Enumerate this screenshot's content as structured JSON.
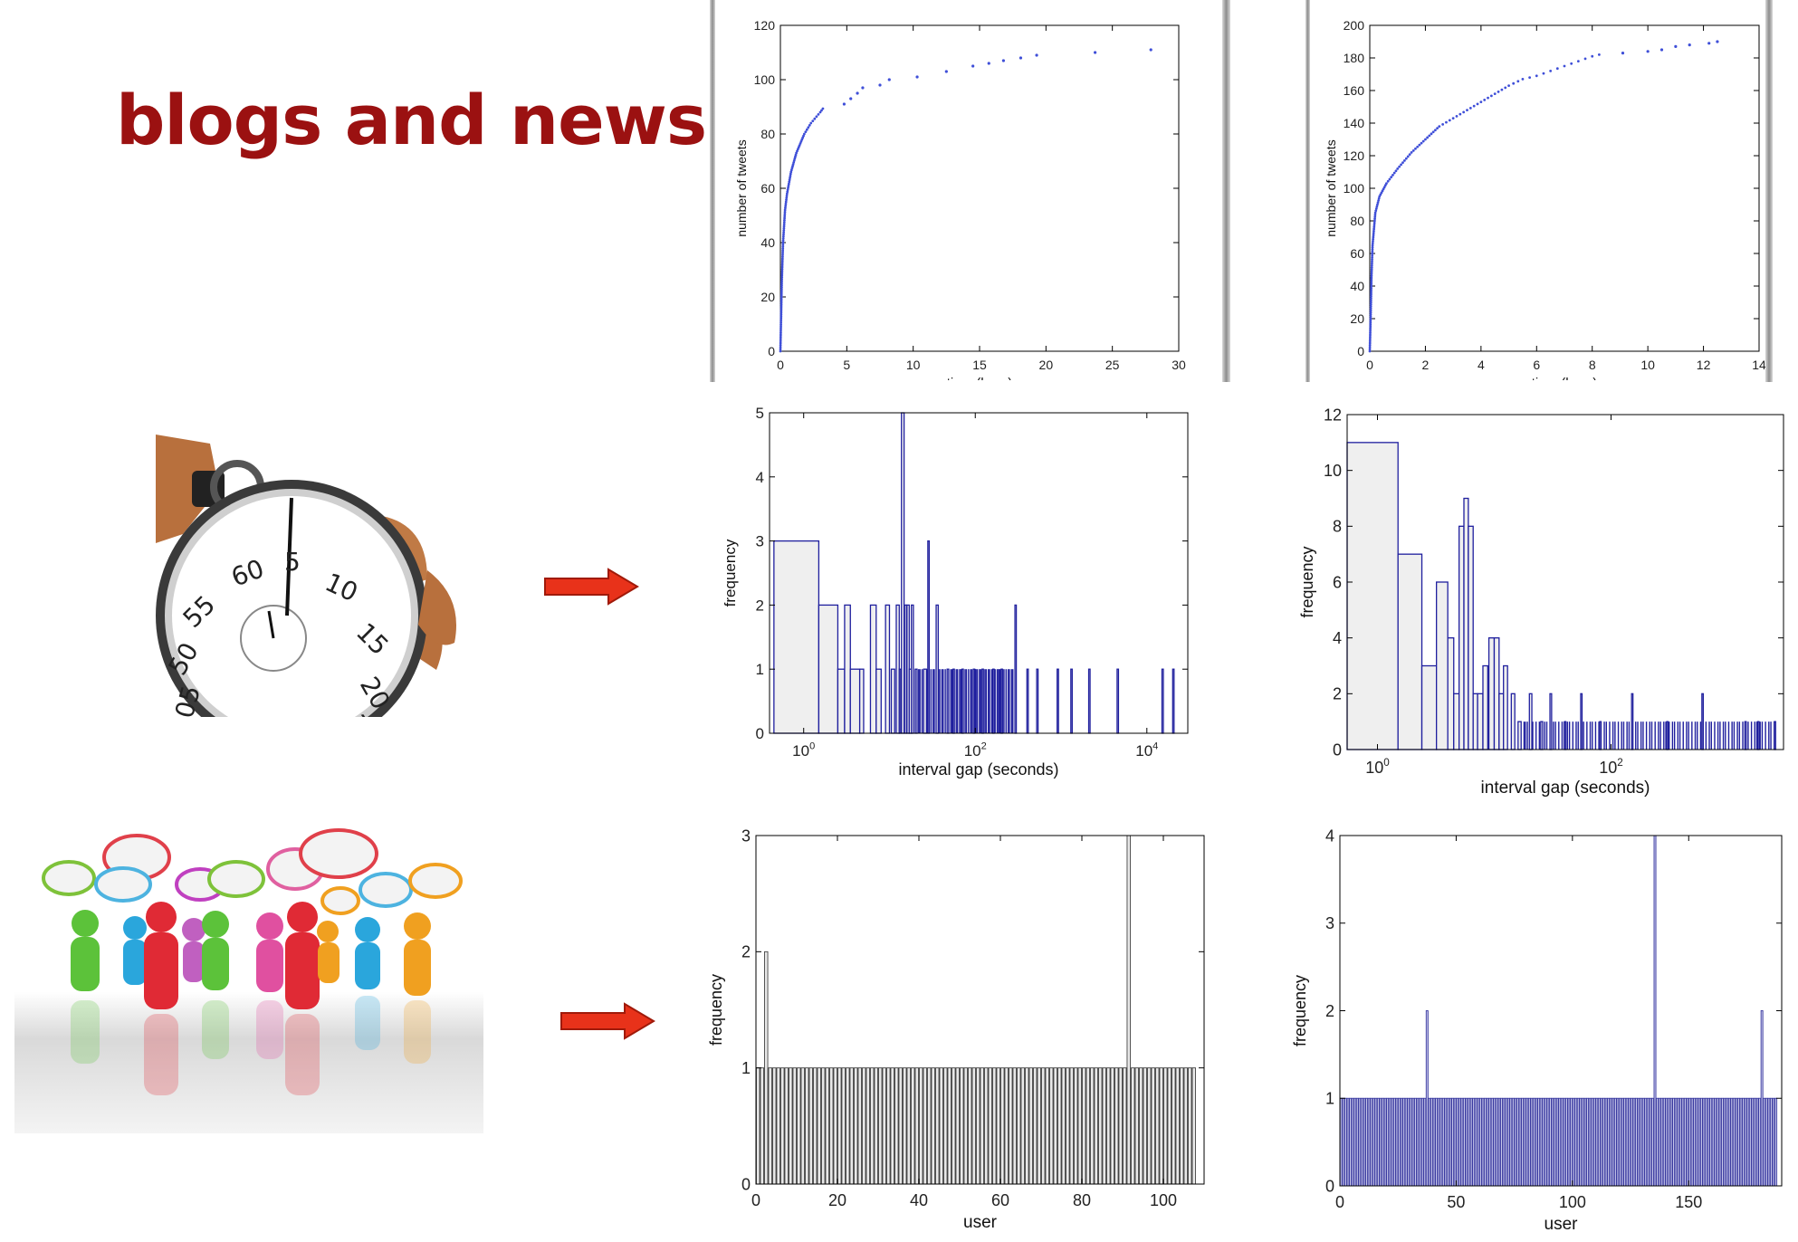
{
  "slide": {
    "title": "blogs and news"
  },
  "images": {
    "stopwatch": {
      "description_icon": "stopwatch-icon"
    },
    "crowd": {
      "description_icon": "people-speech-bubbles-icon"
    }
  },
  "colors": {
    "title": "#9b1111",
    "arrow": "#e8321a",
    "blue": "#1f1f9e",
    "gray_fill": "#efefef"
  },
  "chart_data": [
    {
      "id": "cum1",
      "type": "scatter",
      "xlabel": "time (hour)",
      "ylabel": "number of tweets",
      "xlim": [
        0,
        30
      ],
      "ylim": [
        0,
        120
      ],
      "xticks": [
        0,
        5,
        10,
        15,
        20,
        25,
        30
      ],
      "yticks": [
        0,
        20,
        40,
        60,
        80,
        100,
        120
      ],
      "curve": [
        [
          0,
          0
        ],
        [
          0.05,
          12
        ],
        [
          0.1,
          25
        ],
        [
          0.2,
          40
        ],
        [
          0.35,
          52
        ],
        [
          0.5,
          58
        ],
        [
          0.8,
          66
        ],
        [
          1.2,
          73
        ],
        [
          1.8,
          80
        ],
        [
          2.3,
          84
        ],
        [
          3,
          88
        ],
        [
          3.3,
          90
        ]
      ],
      "extra_points": [
        [
          4.8,
          91
        ],
        [
          5.3,
          93
        ],
        [
          5.8,
          95
        ],
        [
          6.2,
          97
        ],
        [
          7.5,
          98
        ],
        [
          8.2,
          100
        ],
        [
          10.3,
          101
        ],
        [
          12.5,
          103
        ],
        [
          14.5,
          105
        ],
        [
          15.7,
          106
        ],
        [
          16.8,
          107
        ],
        [
          18.1,
          108
        ],
        [
          19.3,
          109
        ],
        [
          23.7,
          110
        ],
        [
          27.9,
          111
        ]
      ]
    },
    {
      "id": "cum2",
      "type": "scatter",
      "xlabel": "time (hour)",
      "ylabel": "number of tweets",
      "xlim": [
        0,
        14
      ],
      "ylim": [
        0,
        200
      ],
      "xticks": [
        0,
        2,
        4,
        6,
        8,
        10,
        12,
        14
      ],
      "yticks": [
        0,
        20,
        40,
        60,
        80,
        100,
        120,
        140,
        160,
        180,
        200
      ],
      "curve": [
        [
          0,
          0
        ],
        [
          0.03,
          20
        ],
        [
          0.06,
          45
        ],
        [
          0.1,
          65
        ],
        [
          0.2,
          85
        ],
        [
          0.35,
          95
        ],
        [
          0.6,
          103
        ],
        [
          1,
          112
        ],
        [
          1.5,
          122
        ],
        [
          2,
          130
        ],
        [
          2.5,
          138
        ],
        [
          3,
          143
        ],
        [
          3.5,
          148
        ],
        [
          4,
          153
        ],
        [
          4.5,
          158
        ],
        [
          5,
          163
        ],
        [
          5.5,
          167
        ],
        [
          6,
          169
        ],
        [
          6.5,
          172
        ],
        [
          7,
          175
        ],
        [
          7.5,
          178
        ],
        [
          8,
          181
        ],
        [
          8.5,
          183
        ]
      ],
      "extra_points": [
        [
          9.1,
          183
        ],
        [
          10,
          184
        ],
        [
          10.5,
          185
        ],
        [
          11,
          187
        ],
        [
          11.5,
          188
        ],
        [
          12.2,
          189
        ],
        [
          12.5,
          190
        ]
      ]
    },
    {
      "id": "hist1",
      "type": "bar",
      "xlabel": "interval gap (seconds)",
      "ylabel": "frequency",
      "xscale": "log",
      "xlim": [
        0.4,
        30000
      ],
      "ylim": [
        0,
        5
      ],
      "xticks": [
        {
          "v": 1,
          "base": "10",
          "exp": "0"
        },
        {
          "v": 100,
          "base": "10",
          "exp": "2"
        },
        {
          "v": 10000,
          "base": "10",
          "exp": "4"
        }
      ],
      "yticks": [
        0,
        1,
        2,
        3,
        4,
        5
      ],
      "bars": [
        [
          0.45,
          1.5,
          3
        ],
        [
          1.5,
          2.5,
          2
        ],
        [
          2.5,
          3,
          1
        ],
        [
          3,
          3.5,
          2
        ],
        [
          3.5,
          4.5,
          1
        ],
        [
          4.5,
          5,
          1
        ],
        [
          6,
          7,
          2
        ],
        [
          7,
          8,
          1
        ],
        [
          9,
          10,
          2
        ],
        [
          10.5,
          11.5,
          1
        ],
        [
          12,
          13,
          2
        ],
        [
          13,
          13.5,
          1
        ],
        [
          13.8,
          14.8,
          5
        ],
        [
          15,
          15.8,
          2
        ],
        [
          16,
          17,
          2
        ],
        [
          17,
          18,
          1
        ],
        [
          18,
          19,
          2
        ],
        [
          20,
          21,
          1
        ],
        [
          25,
          27,
          1
        ],
        [
          28,
          29,
          3
        ],
        [
          35,
          37,
          2
        ],
        [
          47,
          49,
          1
        ],
        [
          55,
          57,
          1
        ],
        [
          70,
          72,
          1
        ],
        [
          95,
          97,
          1
        ],
        [
          120,
          123,
          1
        ],
        [
          160,
          163,
          1
        ],
        [
          200,
          203,
          1
        ],
        [
          290,
          294,
          2
        ],
        [
          400,
          405,
          1
        ],
        [
          520,
          530,
          1
        ],
        [
          900,
          910,
          1
        ],
        [
          1300,
          1320,
          1
        ],
        [
          2100,
          2130,
          1
        ],
        [
          4500,
          4560,
          1
        ],
        [
          15000,
          15200,
          1
        ],
        [
          20000,
          20300,
          1
        ]
      ],
      "dense_spikes": {
        "from": 20,
        "to": 280,
        "count": 60,
        "value": 1
      }
    },
    {
      "id": "hist2",
      "type": "bar",
      "xlabel": "interval gap (seconds)",
      "ylabel": "frequency",
      "xscale": "log",
      "xlim": [
        0.55,
        3000
      ],
      "ylim": [
        0,
        12
      ],
      "xticks": [
        {
          "v": 1,
          "base": "10",
          "exp": "0"
        },
        {
          "v": 100,
          "base": "10",
          "exp": "2"
        }
      ],
      "yticks": [
        0,
        2,
        4,
        6,
        8,
        10,
        12
      ],
      "bars": [
        [
          0.55,
          1.5,
          11
        ],
        [
          1.5,
          2.4,
          7
        ],
        [
          2.4,
          3.2,
          3
        ],
        [
          3.2,
          4,
          6
        ],
        [
          4,
          4.5,
          4
        ],
        [
          4.5,
          5,
          2
        ],
        [
          5,
          5.5,
          8
        ],
        [
          5.5,
          6,
          9
        ],
        [
          6,
          6.6,
          8
        ],
        [
          6.6,
          7.2,
          2
        ],
        [
          7.2,
          8,
          2
        ],
        [
          8,
          8.8,
          3
        ],
        [
          9,
          10,
          4
        ],
        [
          10,
          11,
          4
        ],
        [
          11,
          12,
          2
        ],
        [
          12,
          13,
          3
        ],
        [
          14,
          15,
          2
        ],
        [
          16,
          17,
          1
        ],
        [
          20,
          21,
          2
        ],
        [
          25,
          26,
          1
        ],
        [
          30,
          31,
          2
        ],
        [
          40,
          41,
          1
        ],
        [
          55,
          56,
          2
        ],
        [
          80,
          81,
          1
        ],
        [
          150,
          152,
          2
        ],
        [
          300,
          303,
          1
        ],
        [
          600,
          606,
          2
        ],
        [
          1400,
          1410,
          1
        ],
        [
          1800,
          1820,
          1
        ],
        [
          2500,
          2520,
          1
        ]
      ],
      "dense_spikes": {
        "from": 18,
        "to": 2600,
        "count": 90,
        "value": 1
      }
    },
    {
      "id": "user1",
      "type": "bar",
      "xlabel": "user",
      "ylabel": "frequency",
      "xlim": [
        0,
        110
      ],
      "ylim": [
        0,
        3
      ],
      "xticks": [
        0,
        20,
        40,
        60,
        80,
        100
      ],
      "yticks": [
        0,
        1,
        2,
        3
      ],
      "n_users": 108,
      "default_value": 1,
      "overrides": [
        {
          "user": 3,
          "value": 2
        },
        {
          "user": 92,
          "value": 3
        }
      ]
    },
    {
      "id": "user2",
      "type": "bar",
      "xlabel": "user",
      "ylabel": "frequency",
      "xlim": [
        0,
        190
      ],
      "ylim": [
        0,
        4
      ],
      "xticks": [
        0,
        50,
        100,
        150
      ],
      "yticks": [
        0,
        1,
        2,
        3,
        4
      ],
      "n_users": 188,
      "default_value": 1,
      "overrides": [
        {
          "user": 38,
          "value": 2
        },
        {
          "user": 136,
          "value": 4
        },
        {
          "user": 182,
          "value": 2
        }
      ]
    }
  ]
}
